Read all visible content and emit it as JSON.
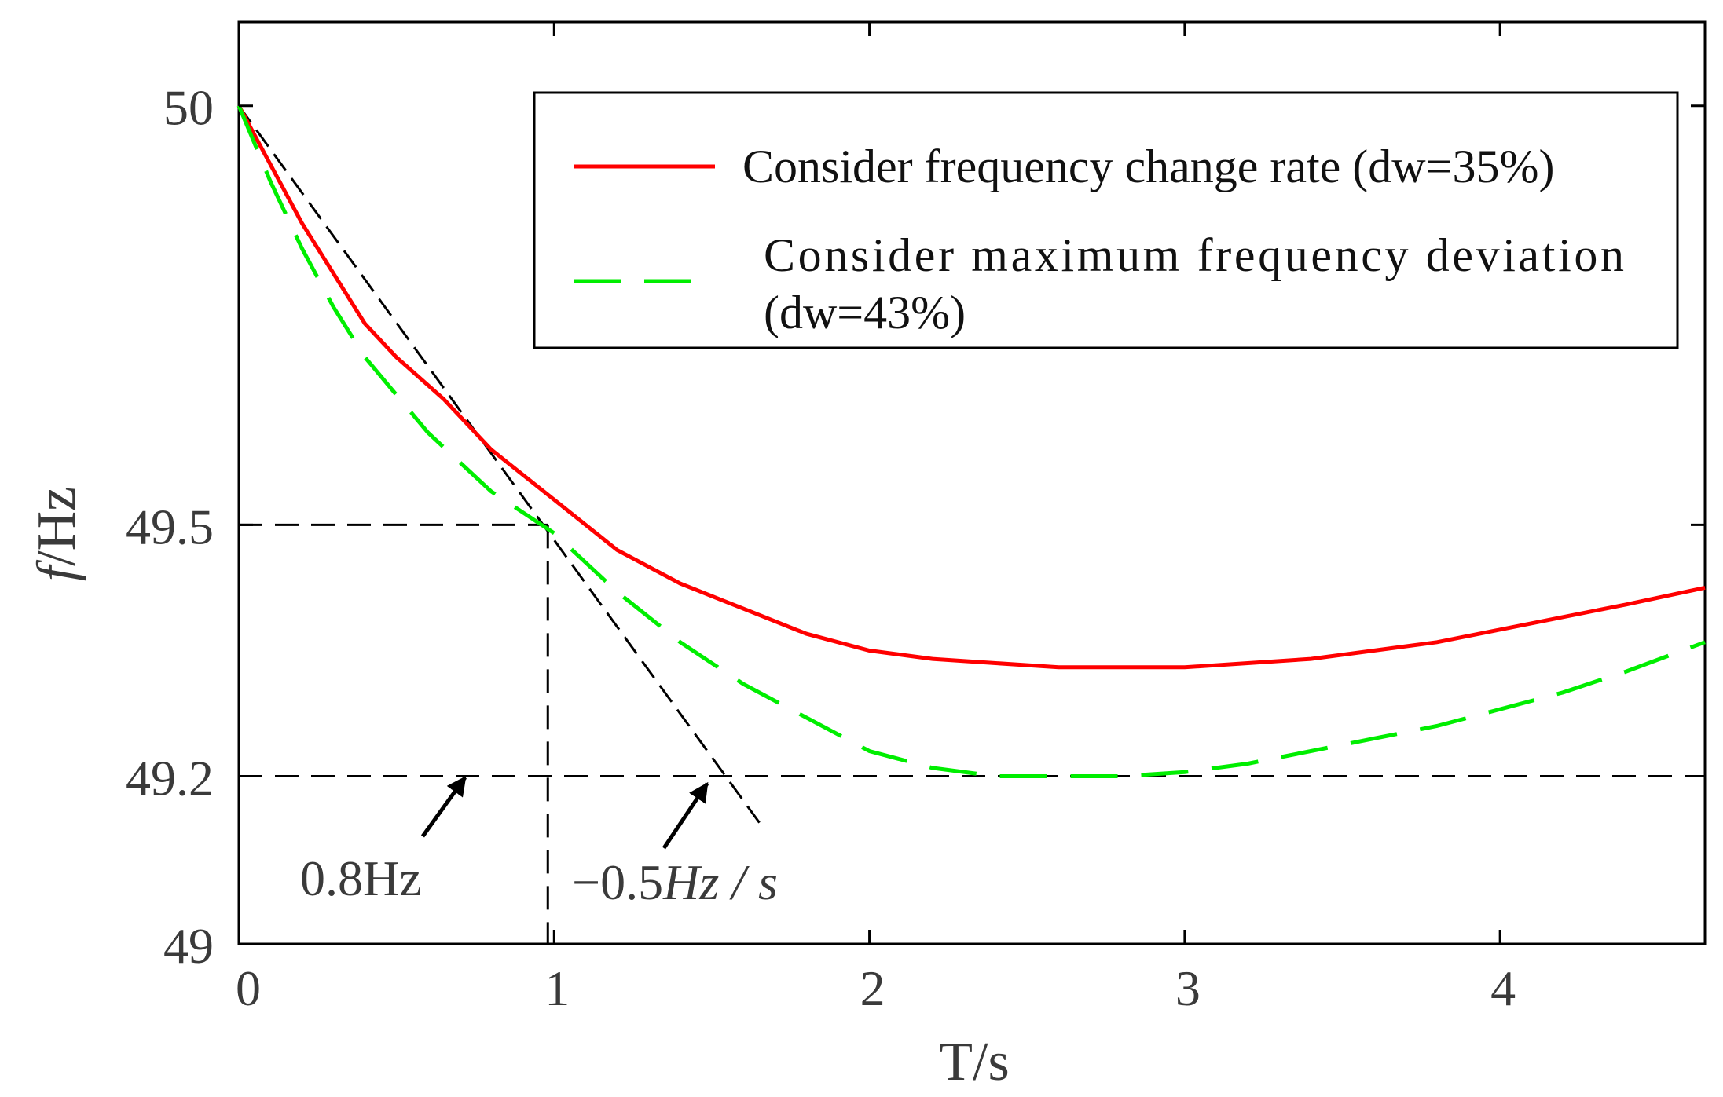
{
  "chart_data": {
    "type": "line",
    "xlabel": "T/s",
    "ylabel_italic": "f",
    "ylabel_rest": "/Hz",
    "xlim": [
      0,
      4.65
    ],
    "ylim": [
      49,
      50.1
    ],
    "xticks": [
      0,
      1,
      2,
      3,
      4
    ],
    "xtick_labels": [
      "0",
      "1",
      "2",
      "3",
      "4"
    ],
    "yticks": [
      49,
      49.2,
      49.5,
      50
    ],
    "ytick_labels": [
      "49",
      "49.2",
      "49.5",
      "50"
    ],
    "grid": false,
    "legend_position": "top-right",
    "series": [
      {
        "name": "Consider frequency change rate (dw=35%)",
        "color": "#ff0000",
        "style": "solid",
        "x": [
          0,
          0.2,
          0.4,
          0.5,
          0.65,
          0.8,
          1.0,
          1.2,
          1.4,
          1.6,
          1.8,
          2.0,
          2.2,
          2.4,
          2.6,
          2.8,
          3.0,
          3.2,
          3.4,
          3.6,
          3.8,
          4.0,
          4.2,
          4.4,
          4.65
        ],
        "y": [
          50.0,
          49.86,
          49.74,
          49.7,
          49.65,
          49.59,
          49.53,
          49.47,
          49.43,
          49.4,
          49.37,
          49.35,
          49.34,
          49.335,
          49.33,
          49.33,
          49.33,
          49.335,
          49.34,
          49.35,
          49.36,
          49.375,
          49.39,
          49.405,
          49.425
        ]
      },
      {
        "name": "Consider maximum frequency deviation (dw=43%)",
        "label_line1": "Consider maximum frequency deviation",
        "label_line2": "(dw=43%)",
        "color": "#00ee00",
        "style": "dashed",
        "x": [
          0,
          0.1,
          0.2,
          0.3,
          0.4,
          0.6,
          0.8,
          1.0,
          1.2,
          1.4,
          1.6,
          1.8,
          2.0,
          2.2,
          2.4,
          2.6,
          2.8,
          3.0,
          3.2,
          3.4,
          3.6,
          3.8,
          4.0,
          4.2,
          4.4,
          4.65
        ],
        "y": [
          50.0,
          49.91,
          49.83,
          49.76,
          49.7,
          49.61,
          49.54,
          49.49,
          49.42,
          49.36,
          49.31,
          49.27,
          49.23,
          49.21,
          49.2,
          49.2,
          49.2,
          49.205,
          49.215,
          49.23,
          49.245,
          49.26,
          49.28,
          49.3,
          49.325,
          49.36
        ]
      }
    ],
    "annotations": {
      "deviation_label": "0.8Hz",
      "rate_label_prefix": "−0.5",
      "rate_label_unit": "Hz / s",
      "slope_line": {
        "x1": 0,
        "y1": 50.0,
        "x2": 1.66,
        "y2": 49.14
      },
      "h_line_49_5_x_end": 0.98,
      "v_line_x": 0.98,
      "h_line_49_2_x": [
        0,
        4.65
      ]
    }
  }
}
